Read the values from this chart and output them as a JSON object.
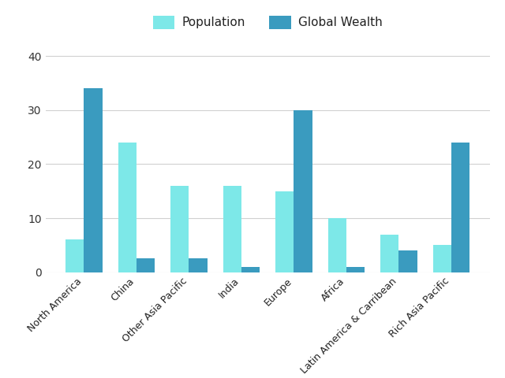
{
  "categories": [
    "North America",
    "China",
    "Other Asia Pacific",
    "India",
    "Europe",
    "Africa",
    "Latin America & Carribean",
    "Rich Asia Pacific"
  ],
  "population": [
    6,
    24,
    16,
    16,
    15,
    10,
    7,
    5
  ],
  "global_wealth": [
    34,
    2.5,
    2.5,
    1,
    30,
    1,
    4,
    24
  ],
  "population_color": "#7de8e8",
  "wealth_color": "#3a9bbf",
  "legend_labels": [
    "Population",
    "Global Wealth"
  ],
  "yticks": [
    0,
    10,
    20,
    30,
    40
  ],
  "ylim": [
    0,
    42
  ],
  "background_color": "#ffffff",
  "grid_color": "#d0d0d0",
  "bar_width": 0.35,
  "label_fontsize": 9,
  "legend_fontsize": 11
}
